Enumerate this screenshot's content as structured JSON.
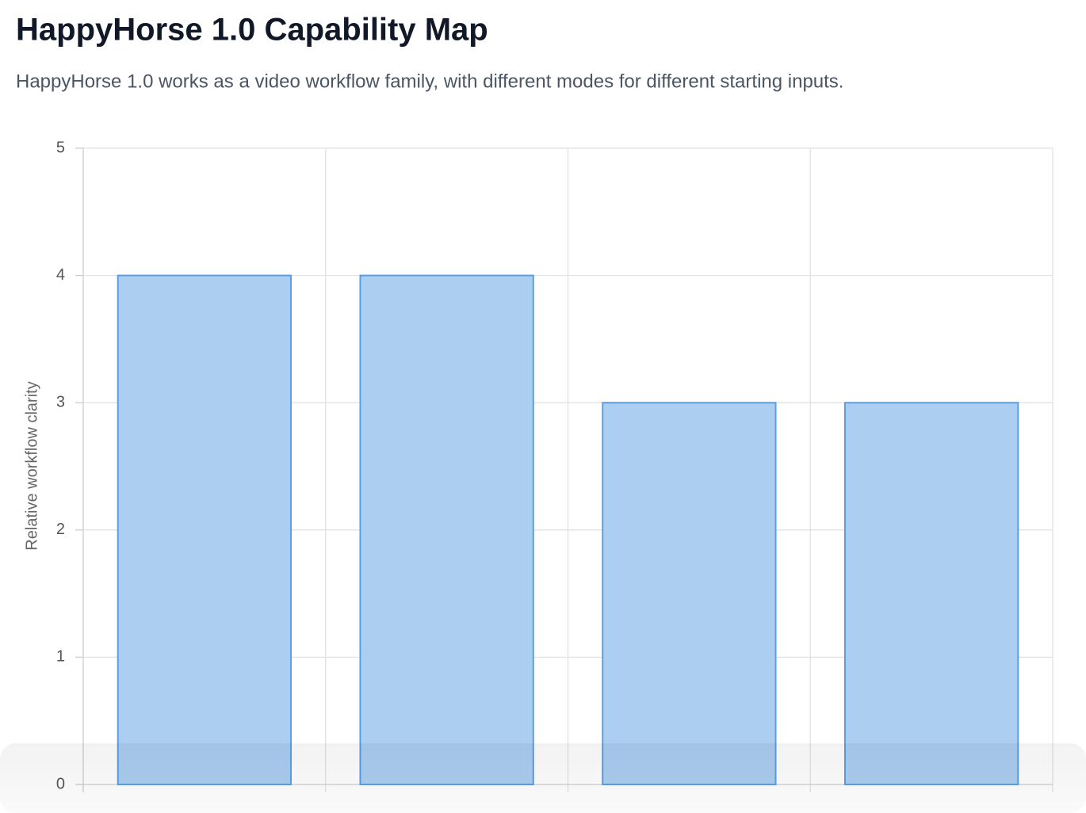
{
  "chart_data": {
    "type": "bar",
    "title": "HappyHorse 1.0 Capability Map",
    "subtitle": "HappyHorse 1.0 works as a video workflow family, with different modes for different starting inputs.",
    "y_label": "Relative workflow clarity",
    "categories": [
      null,
      null,
      null,
      null
    ],
    "values": [
      4,
      4,
      3,
      3
    ],
    "color": "#abcef1",
    "border_color": "#5b9ee6",
    "ylim": [
      0,
      5
    ],
    "yticks": [
      0,
      1,
      2,
      3,
      4,
      5
    ],
    "grid": true
  }
}
